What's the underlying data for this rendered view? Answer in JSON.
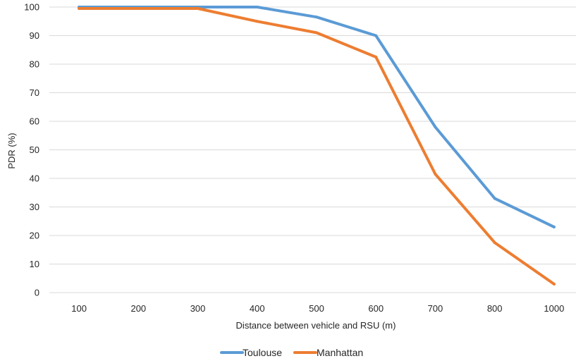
{
  "chart_data": {
    "type": "line",
    "title": "",
    "xlabel": "Distance between vehicle and RSU (m)",
    "ylabel": "PDR (%)",
    "categories": [
      "100",
      "200",
      "300",
      "400",
      "500",
      "600",
      "700",
      "800",
      "1000"
    ],
    "ylim": [
      0,
      100
    ],
    "yticks": [
      "0",
      "10",
      "20",
      "30",
      "40",
      "50",
      "60",
      "70",
      "80",
      "90",
      "100"
    ],
    "grid": true,
    "legend_position": "bottom",
    "series": [
      {
        "name": "Toulouse",
        "color": "#5b9bd5",
        "values": [
          100,
          100,
          100,
          100,
          96.5,
          90,
          58,
          33,
          23
        ]
      },
      {
        "name": "Manhattan",
        "color": "#ed7d31",
        "values": [
          99.5,
          99.5,
          99.5,
          95,
          91,
          82.5,
          41.5,
          17.5,
          3
        ]
      }
    ]
  }
}
